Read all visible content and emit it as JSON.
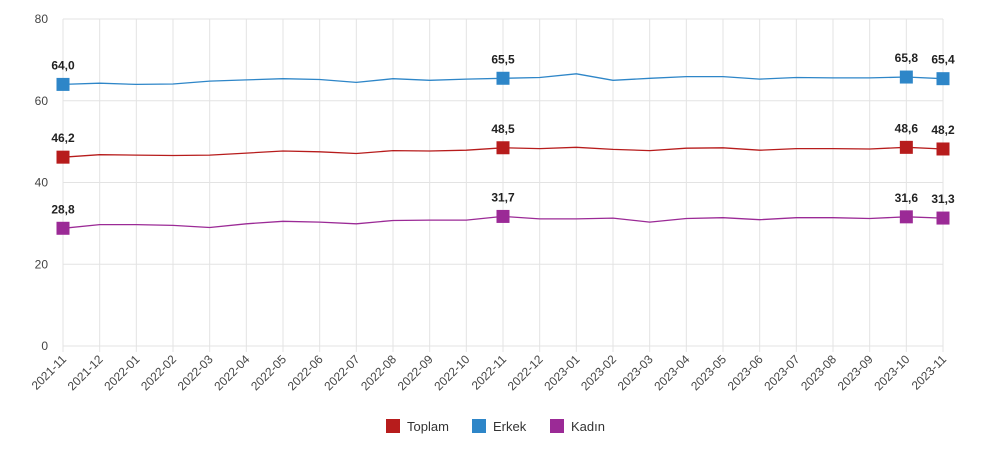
{
  "chart_data": {
    "type": "line",
    "title": "",
    "xlabel": "",
    "ylabel": "",
    "ylim": [
      0,
      80
    ],
    "yticks": [
      0,
      20,
      40,
      60,
      80
    ],
    "grid": true,
    "legend_position": "bottom-center",
    "categories": [
      "2021-11",
      "2021-12",
      "2022-01",
      "2022-02",
      "2022-03",
      "2022-04",
      "2022-05",
      "2022-06",
      "2022-07",
      "2022-08",
      "2022-09",
      "2022-10",
      "2022-11",
      "2022-12",
      "2023-01",
      "2023-02",
      "2023-03",
      "2023-04",
      "2023-05",
      "2023-06",
      "2023-07",
      "2023-08",
      "2023-09",
      "2023-10",
      "2023-11"
    ],
    "series": [
      {
        "name": "Toplam",
        "color": "#b71c1c",
        "values": [
          46.2,
          46.8,
          46.7,
          46.6,
          46.7,
          47.2,
          47.7,
          47.5,
          47.1,
          47.8,
          47.7,
          47.9,
          48.5,
          48.3,
          48.6,
          48.1,
          47.8,
          48.4,
          48.5,
          47.9,
          48.3,
          48.3,
          48.2,
          48.6,
          48.2
        ],
        "labels": [
          {
            "index": 0,
            "text": "46,2"
          },
          {
            "index": 12,
            "text": "48,5"
          },
          {
            "index": 23,
            "text": "48,6"
          },
          {
            "index": 24,
            "text": "48,2"
          }
        ]
      },
      {
        "name": "Erkek",
        "color": "#2e86c8",
        "values": [
          64.0,
          64.3,
          64.0,
          64.1,
          64.8,
          65.1,
          65.4,
          65.2,
          64.5,
          65.4,
          65.0,
          65.3,
          65.5,
          65.7,
          66.6,
          65.0,
          65.5,
          65.9,
          65.9,
          65.3,
          65.7,
          65.6,
          65.6,
          65.8,
          65.4
        ],
        "labels": [
          {
            "index": 0,
            "text": "64,0"
          },
          {
            "index": 12,
            "text": "65,5"
          },
          {
            "index": 23,
            "text": "65,8"
          },
          {
            "index": 24,
            "text": "65,4"
          }
        ]
      },
      {
        "name": "Kadın",
        "color": "#9b2a96",
        "values": [
          28.8,
          29.7,
          29.7,
          29.5,
          29.0,
          29.9,
          30.5,
          30.3,
          29.9,
          30.7,
          30.8,
          30.8,
          31.7,
          31.1,
          31.1,
          31.3,
          30.3,
          31.2,
          31.4,
          30.9,
          31.4,
          31.4,
          31.2,
          31.6,
          31.3
        ],
        "labels": [
          {
            "index": 0,
            "text": "28,8"
          },
          {
            "index": 12,
            "text": "31,7"
          },
          {
            "index": 23,
            "text": "31,6"
          },
          {
            "index": 24,
            "text": "31,3"
          }
        ]
      }
    ],
    "marker_indices": [
      0,
      12,
      23,
      24
    ],
    "colors": {
      "grid": "#e3e3e3",
      "axis": "#cccccc"
    }
  }
}
